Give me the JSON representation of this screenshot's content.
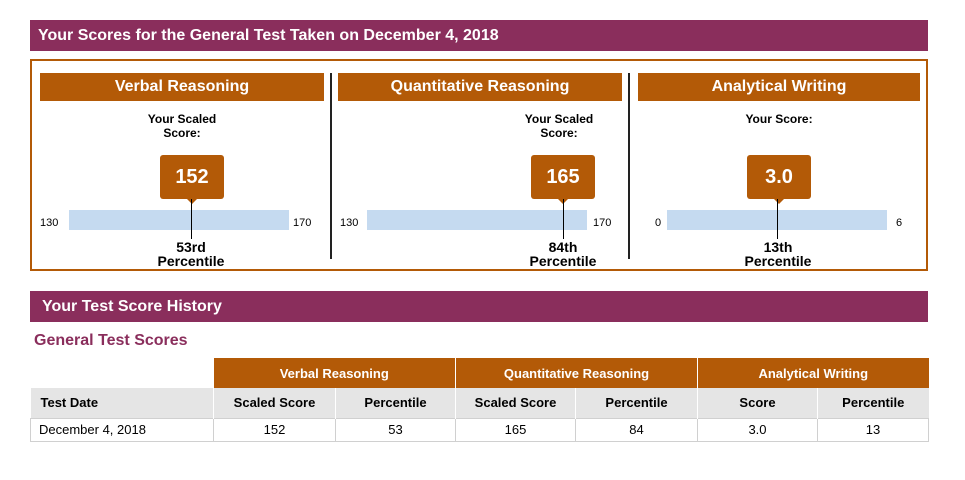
{
  "header": {
    "title": "Your Scores for the General Test Taken on December 4, 2018"
  },
  "scores": [
    {
      "name": "Verbal Reasoning",
      "scaled_label": "Your Scaled Score:",
      "score": "152",
      "min": "130",
      "max": "170",
      "percentile_rank": "53rd",
      "percentile_word": "Percentile"
    },
    {
      "name": "Quantitative Reasoning",
      "scaled_label": "Your Scaled Score:",
      "score": "165",
      "min": "130",
      "max": "170",
      "percentile_rank": "84th",
      "percentile_word": "Percentile"
    },
    {
      "name": "Analytical Writing",
      "scaled_label": "Your Score:",
      "score": "3.0",
      "min": "0",
      "max": "6",
      "percentile_rank": "13th",
      "percentile_word": "Percentile"
    }
  ],
  "history": {
    "title": "Your Test Score History",
    "subtitle": "General Test Scores",
    "groups": [
      "Verbal Reasoning",
      "Quantitative Reasoning",
      "Analytical Writing"
    ],
    "columns": [
      "Test Date",
      "Scaled Score",
      "Percentile",
      "Scaled Score",
      "Percentile",
      "Score",
      "Percentile"
    ],
    "rows": [
      [
        "December 4, 2018",
        "152",
        "53",
        "165",
        "84",
        "3.0",
        "13"
      ]
    ]
  }
}
